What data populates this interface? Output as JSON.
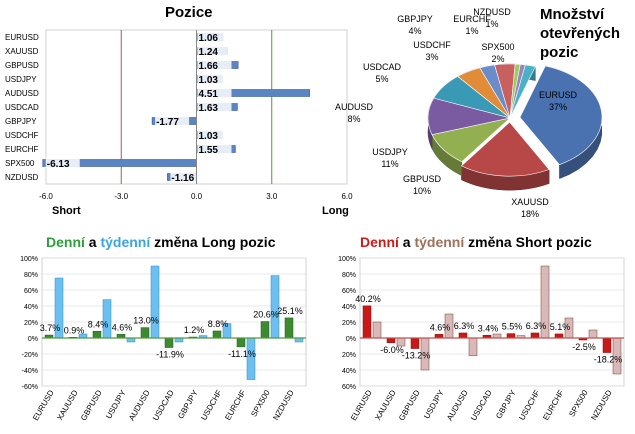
{
  "colors": {
    "long_green": "#2e9e3a",
    "weekly_blue": "#3aa6e0",
    "short_red": "#cc1a1a",
    "weekly_brown": "#a0705a",
    "bar_blue": "#5b84c4",
    "axis_red": "#c0504d",
    "axis_green": "#4f9a3a"
  },
  "chart_data": [
    {
      "id": "pozice",
      "type": "bar",
      "orientation": "horizontal",
      "title": "Pozice",
      "categories": [
        "EURUSD",
        "XAUUSD",
        "GBPUSD",
        "USDJPY",
        "AUDUSD",
        "USDCAD",
        "GBPJPY",
        "USDCHF",
        "EURCHF",
        "SPX500",
        "NZDUSD"
      ],
      "values": [
        1.06,
        1.24,
        1.66,
        1.03,
        4.51,
        1.63,
        -1.77,
        1.03,
        1.55,
        -6.13,
        -1.16
      ],
      "value_labels": [
        "1.06",
        "1.24",
        "1.66",
        "1.03",
        "4.51",
        "1.63",
        "-1.77",
        "1.03",
        "1.55",
        "-6.13",
        "-1.16"
      ],
      "xlim": [
        -6,
        6
      ],
      "xticks": [
        -6,
        -3,
        0,
        3,
        6
      ],
      "xtick_labels": [
        "-6.0",
        "-3.0",
        "0.0",
        "3.0",
        "6.0"
      ],
      "xlabel_left": "Short",
      "xlabel_right": "Long"
    },
    {
      "id": "mnozstvi",
      "type": "pie",
      "title_lines": [
        "Množství",
        "otevřených",
        "pozic"
      ],
      "categories": [
        "EURUSD",
        "XAUUSD",
        "GBPUSD",
        "USDJPY",
        "AUDUSD",
        "USDCAD",
        "USDCHF",
        "GBPJPY",
        "EURCHF",
        "NZDUSD",
        "SPX500"
      ],
      "values": [
        37,
        18,
        10,
        11,
        8,
        5,
        3,
        4,
        1,
        1,
        2
      ],
      "value_labels": [
        "37%",
        "18%",
        "10%",
        "11%",
        "8%",
        "5%",
        "3%",
        "4%",
        "1%",
        "1%",
        "2%"
      ],
      "colors": [
        "#4a72b0",
        "#b84848",
        "#92b050",
        "#7a5aa0",
        "#3a9ab5",
        "#e08c38",
        "#6a8cc8",
        "#c86060",
        "#9ccc60",
        "#9a84c0",
        "#4ab2c8"
      ]
    },
    {
      "id": "long_changes",
      "type": "bar",
      "title_parts": [
        "Denní",
        " a ",
        "týdenní",
        " změna Long pozic"
      ],
      "categories": [
        "EURUSD",
        "XAUUSD",
        "GBPUSD",
        "USDJPY",
        "AUDUSD",
        "USDCAD",
        "GBPJPY",
        "USDCHF",
        "EURCHF",
        "SPX500",
        "NZDUSD"
      ],
      "series": [
        {
          "values": [
            3.7,
            0.9,
            8.4,
            4.6,
            13.0,
            -11.9,
            1.2,
            8.8,
            -11.1,
            20.6,
            25.1
          ]
        },
        {
          "values": [
            75,
            5,
            48,
            -5,
            90,
            -5,
            3,
            18,
            -52,
            78,
            -5
          ]
        }
      ],
      "value_labels": [
        "3.7%",
        "0.9%",
        "8.4%",
        "4.6%",
        "13.0%",
        "-11.9%",
        "1.2%",
        "8.8%",
        "-11.1%",
        "20.6%",
        "25.1%"
      ],
      "ylim": [
        -60,
        100
      ],
      "yticks": [
        -60,
        -40,
        -20,
        0,
        20,
        40,
        60,
        80,
        100
      ],
      "ytick_labels": [
        "-60%",
        "-40%",
        "-20%",
        "0%",
        "20%",
        "40%",
        "60%",
        "80%",
        "100%"
      ]
    },
    {
      "id": "short_changes",
      "type": "bar",
      "title_parts": [
        "Denní",
        " a ",
        "týdenní",
        " změna Short pozic"
      ],
      "categories": [
        "EURUSD",
        "XAUUSD",
        "GBPUSD",
        "USDJPY",
        "AUDUSD",
        "USDCAD",
        "GBPJPY",
        "USDCHF",
        "EURCHF",
        "SPX500",
        "NZDUSD"
      ],
      "series": [
        {
          "values": [
            40.2,
            -6.0,
            -13.2,
            4.6,
            6.3,
            3.4,
            5.5,
            6.3,
            5.1,
            -2.5,
            -18.2
          ]
        },
        {
          "values": [
            20,
            -10,
            -40,
            30,
            -22,
            5,
            3,
            90,
            25,
            10,
            -45
          ]
        }
      ],
      "value_labels": [
        "40.2%",
        "-6.0%",
        "-13.2%",
        "4.6%",
        "6.3%",
        "3.4%",
        "5.5%",
        "6.3%",
        "5.1%",
        "-2.5%",
        "-18.2%"
      ],
      "ylim": [
        -60,
        100
      ],
      "yticks": [
        -60,
        -40,
        -20,
        0,
        20,
        40,
        60,
        80,
        100
      ],
      "ytick_labels": [
        "60%",
        "40%",
        "20%",
        "0%",
        "20%",
        "40%",
        "60%",
        "80%",
        "100%"
      ]
    }
  ]
}
